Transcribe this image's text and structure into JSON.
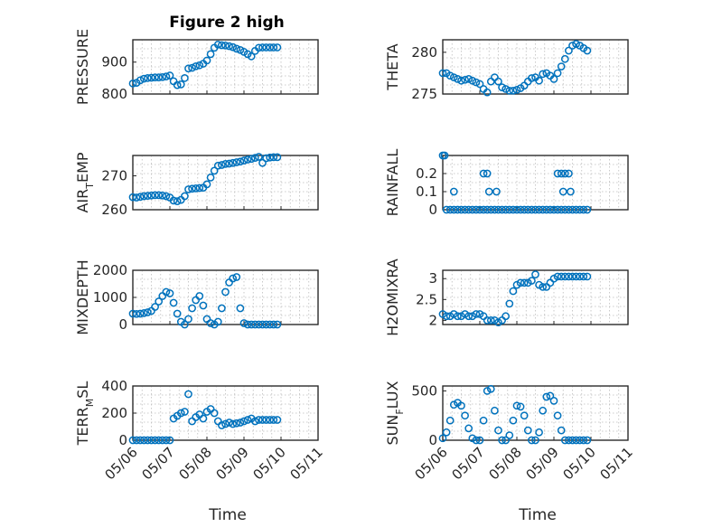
{
  "figure": {
    "title": "Figure 2 high",
    "xlabel": "Time"
  },
  "colors": {
    "marker": "#0072BD",
    "axis": "#262626",
    "grid": "#bdbdbd"
  },
  "chart_data": [
    {
      "type": "scatter",
      "title": "Figure 2 high",
      "ylabel": "PRESSURE",
      "ylabel_sub": "",
      "xlim": [
        "05/06",
        "05/11"
      ],
      "ylim": [
        800,
        970
      ],
      "yticks": [
        800,
        900
      ],
      "xticks": [
        "05/06",
        "05/07",
        "05/08",
        "05/09",
        "05/10",
        "05/11"
      ],
      "show_xticks": false,
      "x_days": [
        0.0,
        0.1,
        0.2,
        0.3,
        0.4,
        0.5,
        0.6,
        0.7,
        0.8,
        0.9,
        1.0,
        1.1,
        1.2,
        1.3,
        1.4,
        1.5,
        1.6,
        1.7,
        1.8,
        1.9,
        2.0,
        2.1,
        2.2,
        2.3,
        2.4,
        2.5,
        2.6,
        2.7,
        2.8,
        2.9,
        3.0,
        3.1,
        3.2,
        3.3,
        3.4,
        3.5,
        3.6,
        3.7,
        3.8,
        3.9
      ],
      "values": [
        833,
        835,
        843,
        848,
        850,
        851,
        852,
        852,
        853,
        855,
        858,
        840,
        828,
        830,
        850,
        880,
        882,
        887,
        890,
        895,
        905,
        925,
        945,
        955,
        953,
        952,
        950,
        947,
        942,
        938,
        932,
        925,
        918,
        935,
        945,
        946,
        946,
        946,
        946,
        946
      ]
    },
    {
      "type": "scatter",
      "ylabel": "THETA",
      "ylabel_sub": "",
      "xlim": [
        "05/06",
        "05/11"
      ],
      "ylim": [
        275,
        281.5
      ],
      "yticks": [
        275,
        280
      ],
      "xticks": [
        "05/06",
        "05/07",
        "05/08",
        "05/09",
        "05/10",
        "05/11"
      ],
      "show_xticks": false,
      "x_days": [
        0.0,
        0.1,
        0.2,
        0.3,
        0.4,
        0.5,
        0.6,
        0.7,
        0.8,
        0.9,
        1.0,
        1.1,
        1.2,
        1.3,
        1.4,
        1.5,
        1.6,
        1.7,
        1.8,
        1.9,
        2.0,
        2.1,
        2.2,
        2.3,
        2.4,
        2.5,
        2.6,
        2.7,
        2.8,
        2.9,
        3.0,
        3.1,
        3.2,
        3.3,
        3.4,
        3.5,
        3.6,
        3.7,
        3.8,
        3.9
      ],
      "values": [
        277.5,
        277.5,
        277.2,
        277.0,
        276.8,
        276.6,
        276.7,
        276.8,
        276.6,
        276.4,
        276.2,
        275.6,
        275.2,
        276.5,
        277.0,
        276.5,
        275.8,
        275.6,
        275.4,
        275.4,
        275.5,
        275.7,
        276.0,
        276.5,
        276.9,
        277.0,
        276.6,
        277.4,
        277.5,
        277.2,
        276.8,
        277.5,
        278.3,
        279.2,
        280.2,
        280.8,
        281.0,
        280.8,
        280.5,
        280.2
      ]
    },
    {
      "type": "scatter",
      "ylabel": "AIR",
      "ylabel_sub": "T",
      "ylabel_rest": "EMP",
      "xlim": [
        "05/06",
        "05/11"
      ],
      "ylim": [
        260,
        276
      ],
      "yticks": [
        260,
        270
      ],
      "xticks": [
        "05/06",
        "05/07",
        "05/08",
        "05/09",
        "05/10",
        "05/11"
      ],
      "show_xticks": false,
      "x_days": [
        0.0,
        0.1,
        0.2,
        0.3,
        0.4,
        0.5,
        0.6,
        0.7,
        0.8,
        0.9,
        1.0,
        1.1,
        1.2,
        1.3,
        1.4,
        1.5,
        1.6,
        1.7,
        1.8,
        1.9,
        2.0,
        2.1,
        2.2,
        2.3,
        2.4,
        2.5,
        2.6,
        2.7,
        2.8,
        2.9,
        3.0,
        3.1,
        3.2,
        3.3,
        3.4,
        3.5,
        3.6,
        3.7,
        3.8,
        3.9
      ],
      "values": [
        263.7,
        263.6,
        263.8,
        264.0,
        264.1,
        264.2,
        264.3,
        264.3,
        264.2,
        264.0,
        263.6,
        262.7,
        262.5,
        262.9,
        264.0,
        266.0,
        266.2,
        266.3,
        266.4,
        266.5,
        267.5,
        269.5,
        271.5,
        273.0,
        273.2,
        273.5,
        273.6,
        273.8,
        274.0,
        274.2,
        274.5,
        274.8,
        275.0,
        275.3,
        275.6,
        273.8,
        275.2,
        275.4,
        275.5,
        275.5
      ]
    },
    {
      "type": "scatter",
      "ylabel": "RAINFALL",
      "ylabel_sub": "",
      "xlim": [
        "05/06",
        "05/11"
      ],
      "ylim": [
        0,
        0.3
      ],
      "yticks": [
        0,
        0.1,
        0.2
      ],
      "xticks": [
        "05/06",
        "05/07",
        "05/08",
        "05/09",
        "05/10",
        "05/11"
      ],
      "show_xticks": false,
      "x_days": [
        0.0,
        0.1,
        0.2,
        0.3,
        0.4,
        0.5,
        0.6,
        0.7,
        0.8,
        0.9,
        1.0,
        1.1,
        1.2,
        1.3,
        1.4,
        1.5,
        1.6,
        1.7,
        1.8,
        1.9,
        2.0,
        2.1,
        2.2,
        2.3,
        2.4,
        2.5,
        2.6,
        2.7,
        2.8,
        2.9,
        3.0,
        3.1,
        3.2,
        3.3,
        3.4,
        3.5,
        3.6,
        3.7,
        3.8,
        3.9,
        0.05,
        0.3,
        1.1,
        1.2,
        1.25,
        1.45,
        3.1,
        3.2,
        3.3,
        3.4,
        3.25,
        3.45
      ],
      "values": [
        0.3,
        0,
        0,
        0,
        0,
        0,
        0,
        0,
        0,
        0,
        0,
        0,
        0,
        0,
        0,
        0,
        0,
        0,
        0,
        0,
        0,
        0,
        0,
        0,
        0,
        0,
        0,
        0,
        0,
        0,
        0,
        0,
        0,
        0,
        0,
        0,
        0,
        0,
        0,
        0,
        0.3,
        0.1,
        0.2,
        0.2,
        0.1,
        0.1,
        0.2,
        0.2,
        0.2,
        0.2,
        0.1,
        0.1
      ]
    },
    {
      "type": "scatter",
      "ylabel": "MIXDEPTH",
      "ylabel_sub": "",
      "xlim": [
        "05/06",
        "05/11"
      ],
      "ylim": [
        0,
        2000
      ],
      "yticks": [
        0,
        1000,
        2000
      ],
      "xticks": [
        "05/06",
        "05/07",
        "05/08",
        "05/09",
        "05/10",
        "05/11"
      ],
      "show_xticks": false,
      "x_days": [
        0.0,
        0.1,
        0.2,
        0.3,
        0.4,
        0.5,
        0.6,
        0.7,
        0.8,
        0.9,
        1.0,
        1.1,
        1.2,
        1.3,
        1.4,
        1.5,
        1.6,
        1.7,
        1.8,
        1.9,
        2.0,
        2.1,
        2.2,
        2.3,
        2.4,
        2.5,
        2.6,
        2.7,
        2.8,
        2.9,
        3.0,
        3.1,
        3.2,
        3.3,
        3.4,
        3.5,
        3.6,
        3.7,
        3.8,
        3.9
      ],
      "values": [
        400,
        390,
        400,
        420,
        450,
        500,
        650,
        850,
        1050,
        1200,
        1150,
        800,
        400,
        100,
        0,
        200,
        600,
        900,
        1050,
        700,
        200,
        50,
        0,
        100,
        600,
        1200,
        1550,
        1700,
        1750,
        600,
        50,
        0,
        0,
        0,
        0,
        0,
        0,
        0,
        0,
        0
      ]
    },
    {
      "type": "scatter",
      "ylabel": "H2OMIXRA",
      "ylabel_sub": "",
      "xlim": [
        "05/06",
        "05/11"
      ],
      "ylim": [
        1.9,
        3.2
      ],
      "yticks": [
        2,
        2.5,
        3
      ],
      "xticks": [
        "05/06",
        "05/07",
        "05/08",
        "05/09",
        "05/10",
        "05/11"
      ],
      "show_xticks": false,
      "x_days": [
        0.0,
        0.1,
        0.2,
        0.3,
        0.4,
        0.5,
        0.6,
        0.7,
        0.8,
        0.9,
        1.0,
        1.1,
        1.2,
        1.3,
        1.4,
        1.5,
        1.6,
        1.7,
        1.8,
        1.9,
        2.0,
        2.1,
        2.2,
        2.3,
        2.4,
        2.5,
        2.6,
        2.7,
        2.8,
        2.9,
        3.0,
        3.1,
        3.2,
        3.3,
        3.4,
        3.5,
        3.6,
        3.7,
        3.8,
        3.9
      ],
      "values": [
        2.15,
        2.1,
        2.1,
        2.15,
        2.1,
        2.1,
        2.15,
        2.1,
        2.1,
        2.15,
        2.15,
        2.1,
        2.0,
        2.0,
        2.0,
        1.95,
        2.0,
        2.1,
        2.4,
        2.7,
        2.85,
        2.9,
        2.9,
        2.9,
        2.95,
        3.1,
        2.85,
        2.8,
        2.8,
        2.9,
        3.0,
        3.05,
        3.05,
        3.05,
        3.05,
        3.05,
        3.05,
        3.05,
        3.05,
        3.05
      ]
    },
    {
      "type": "scatter",
      "ylabel": "TERR",
      "ylabel_sub": "M",
      "ylabel_rest": "SL",
      "xlim": [
        "05/06",
        "05/11"
      ],
      "ylim": [
        0,
        400
      ],
      "yticks": [
        0,
        200,
        400
      ],
      "xticks": [
        "05/06",
        "05/07",
        "05/08",
        "05/09",
        "05/10",
        "05/11"
      ],
      "show_xticks": true,
      "x_days": [
        0.0,
        0.1,
        0.2,
        0.3,
        0.4,
        0.5,
        0.6,
        0.7,
        0.8,
        0.9,
        1.0,
        1.1,
        1.2,
        1.3,
        1.4,
        1.5,
        1.6,
        1.7,
        1.8,
        1.9,
        2.0,
        2.1,
        2.2,
        2.3,
        2.4,
        2.5,
        2.6,
        2.7,
        2.8,
        2.9,
        3.0,
        3.1,
        3.2,
        3.3,
        3.4,
        3.5,
        3.6,
        3.7,
        3.8,
        3.9
      ],
      "values": [
        0,
        0,
        0,
        0,
        0,
        0,
        0,
        0,
        0,
        0,
        0,
        160,
        180,
        200,
        210,
        340,
        140,
        170,
        190,
        160,
        210,
        230,
        200,
        140,
        110,
        120,
        130,
        120,
        125,
        130,
        140,
        150,
        160,
        140,
        150,
        150,
        150,
        150,
        150,
        150
      ]
    },
    {
      "type": "scatter",
      "ylabel": "SUN",
      "ylabel_sub": "F",
      "ylabel_rest": "LUX",
      "xlim": [
        "05/06",
        "05/11"
      ],
      "ylim": [
        0,
        550
      ],
      "yticks": [
        0,
        500
      ],
      "xticks": [
        "05/06",
        "05/07",
        "05/08",
        "05/09",
        "05/10",
        "05/11"
      ],
      "show_xticks": true,
      "x_days": [
        0.0,
        0.1,
        0.2,
        0.3,
        0.4,
        0.5,
        0.6,
        0.7,
        0.8,
        0.9,
        1.0,
        1.1,
        1.2,
        1.3,
        1.4,
        1.5,
        1.6,
        1.7,
        1.8,
        1.9,
        2.0,
        2.1,
        2.2,
        2.3,
        2.4,
        2.5,
        2.6,
        2.7,
        2.8,
        2.9,
        3.0,
        3.1,
        3.2,
        3.3,
        3.4,
        3.5,
        3.6,
        3.7,
        3.8,
        3.9
      ],
      "values": [
        20,
        80,
        200,
        360,
        380,
        350,
        250,
        120,
        20,
        0,
        0,
        200,
        500,
        520,
        300,
        100,
        0,
        0,
        50,
        200,
        350,
        340,
        250,
        100,
        0,
        0,
        80,
        300,
        440,
        450,
        400,
        250,
        100,
        0,
        0,
        0,
        0,
        0,
        0,
        0
      ]
    }
  ]
}
